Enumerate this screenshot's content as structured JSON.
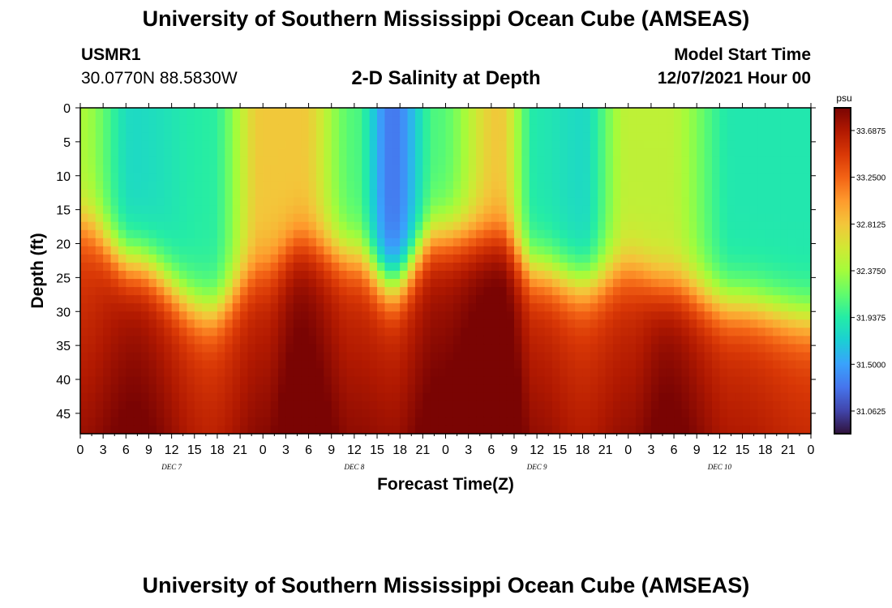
{
  "header": {
    "title": "University of Southern Mississippi Ocean Cube (AMSEAS)",
    "station": "USMR1",
    "coords": "30.0770N  88.5830W",
    "subtitle": "2-D Salinity at Depth",
    "model_start_label": "Model Start Time",
    "model_start_value": "12/07/2021 Hour 00"
  },
  "footer": {
    "title": "University of Southern Mississippi Ocean Cube (AMSEAS)"
  },
  "chart_data": {
    "type": "heatmap",
    "title": "2-D Salinity at Depth",
    "xlabel": "Forecast Time(Z)",
    "ylabel": "Depth (ft)",
    "xlim": [
      0,
      96
    ],
    "ylim": [
      0,
      48
    ],
    "x_ticks": [
      0,
      3,
      6,
      9,
      12,
      15,
      18,
      21,
      24,
      27,
      30,
      33,
      36,
      39,
      42,
      45,
      48,
      51,
      54,
      57,
      60,
      63,
      66,
      69,
      72,
      75,
      78,
      81,
      84,
      87,
      90,
      93,
      96
    ],
    "x_tick_labels": [
      "0",
      "3",
      "6",
      "9",
      "12",
      "15",
      "18",
      "21",
      "0",
      "3",
      "6",
      "9",
      "12",
      "15",
      "18",
      "21",
      "0",
      "3",
      "6",
      "9",
      "12",
      "15",
      "18",
      "21",
      "0",
      "3",
      "6",
      "9",
      "12",
      "15",
      "18",
      "21",
      "0"
    ],
    "day_labels": [
      {
        "text": "DEC 7",
        "x": 12
      },
      {
        "text": "DEC 8",
        "x": 36
      },
      {
        "text": "DEC 9",
        "x": 60
      },
      {
        "text": "DEC 10",
        "x": 84
      }
    ],
    "y_ticks": [
      0,
      5,
      10,
      15,
      20,
      25,
      30,
      35,
      40,
      45
    ],
    "y_tick_labels": [
      "0",
      "5",
      "10",
      "15",
      "20",
      "25",
      "30",
      "35",
      "40",
      "45"
    ],
    "colorbar": {
      "unit": "psu",
      "min": 30.85,
      "max": 33.9,
      "tick_values": [
        33.6875,
        33.25,
        32.8125,
        32.375,
        31.9375,
        31.5,
        31.0625
      ],
      "tick_labels": [
        "33.6875",
        "33.2500",
        "32.8125",
        "32.3750",
        "31.9375",
        "31.5000",
        "31.0625"
      ],
      "colors": [
        "#30123b",
        "#4145ab",
        "#4675ed",
        "#39a2fc",
        "#1bcfd4",
        "#24eca6",
        "#61fc6c",
        "#a4fc3b",
        "#d1e834",
        "#f3c63a",
        "#fe9b2d",
        "#f36315",
        "#d93806",
        "#b11901",
        "#7a0403"
      ]
    },
    "anchors": {
      "x": [
        0,
        7,
        17,
        24,
        29,
        36,
        41,
        47,
        55,
        60,
        66,
        72,
        77,
        86,
        96
      ],
      "surface_salinity": [
        32.4,
        31.8,
        31.95,
        32.8,
        32.8,
        32.1,
        31.3,
        32.1,
        32.8,
        31.9,
        31.8,
        32.5,
        32.5,
        31.9,
        31.9
      ],
      "halocline_depth_ft": [
        17,
        23,
        30,
        24,
        20,
        22,
        26,
        19,
        19,
        24,
        26,
        24,
        26,
        29,
        31
      ],
      "deep_salinity": [
        33.45,
        33.7,
        33.45,
        33.6,
        33.8,
        33.55,
        33.55,
        33.7,
        33.9,
        33.55,
        33.45,
        33.55,
        33.75,
        33.5,
        33.4
      ]
    }
  }
}
